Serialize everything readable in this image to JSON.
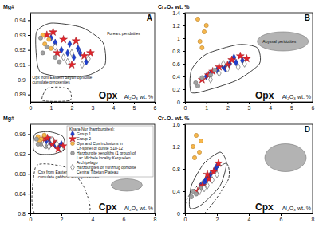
{
  "chart_data": [
    {
      "type": "scatter",
      "panel": "A",
      "label": "Opx",
      "xlabel": "Al₂O₃ wt. %",
      "ylabel": "Mg#",
      "xlim": [
        0,
        6
      ],
      "xticks": [
        0,
        1,
        2,
        3,
        4,
        5,
        6
      ],
      "ylim": [
        0.885,
        0.945
      ],
      "yticks": [
        0.89,
        0.9,
        0.91,
        0.92,
        0.93,
        0.94
      ],
      "fields": [
        {
          "type": "polygon",
          "line_style": "solid",
          "x": [
            0.3,
            0.5,
            1.5,
            2.8,
            3.6,
            3.5,
            2.5,
            1.0,
            0.3
          ],
          "y": [
            0.915,
            0.905,
            0.902,
            0.903,
            0.91,
            0.925,
            0.935,
            0.938,
            0.932
          ]
        },
        {
          "type": "polygon",
          "line_style": "dashed",
          "x": [
            0.6,
            1.9,
            1.9,
            1.4,
            0.8
          ],
          "y": [
            0.886,
            0.886,
            0.893,
            0.895,
            0.894
          ]
        }
      ],
      "annotations": [
        {
          "text": "Forearc peridotites",
          "x": 3.7,
          "y": 0.93
        },
        {
          "text": "Opx from Eastern Sayan ophiolite cumulate pyroxenites",
          "x": 0.1,
          "y": 0.9005
        }
      ],
      "series": [
        {
          "color": "#1f3fcf",
          "marker": "diamond",
          "x": [
            1.2,
            1.5,
            1.8,
            2.1,
            2.4,
            1.0,
            2.7,
            1.9,
            2.3
          ],
          "values": [
            0.925,
            0.92,
            0.918,
            0.915,
            0.918,
            0.928,
            0.912,
            0.924,
            0.921
          ]
        },
        {
          "color": "#e3242b",
          "marker": "star",
          "x": [
            0.8,
            1.1,
            1.6,
            2.0,
            2.6,
            2.9,
            1.3,
            2.2
          ],
          "values": [
            0.93,
            0.932,
            0.927,
            0.91,
            0.916,
            0.918,
            0.918,
            0.926
          ]
        },
        {
          "color": "#f7b64a",
          "marker": "circle",
          "x": [
            0.6,
            0.9,
            0.7,
            1.0
          ],
          "values": [
            0.93,
            0.927,
            0.924,
            0.921
          ]
        },
        {
          "color": "#a0a0a0",
          "marker": "circle",
          "x": [
            0.5,
            0.8,
            1.2,
            0.6,
            1.4
          ],
          "values": [
            0.928,
            0.922,
            0.915,
            0.918,
            0.912
          ]
        },
        {
          "color": "#ffffff",
          "marker": "diamond",
          "x": [
            1.6,
            2.0,
            2.5,
            1.2,
            1.8,
            2.8
          ],
          "values": [
            0.915,
            0.918,
            0.91,
            0.922,
            0.912,
            0.914
          ]
        }
      ]
    },
    {
      "type": "scatter",
      "panel": "B",
      "label": "Opx",
      "xlabel": "Al₂O₃ wt. %",
      "ylabel": "Cr₂O₃ wt. %",
      "xlim": [
        0,
        6
      ],
      "xticks": [
        0,
        1,
        2,
        3,
        4,
        5,
        6
      ],
      "ylim": [
        0,
        1.4
      ],
      "yticks": [
        0,
        0.2,
        0.4,
        0.6,
        0.8,
        1,
        1.2,
        1.4
      ],
      "fields": [
        {
          "type": "polygon",
          "line_style": "solid",
          "x": [
            0.3,
            1.2,
            2.5,
            3.5,
            3.4,
            2.5,
            1.0,
            0.3
          ],
          "y": [
            0.15,
            0.2,
            0.35,
            0.6,
            0.85,
            0.9,
            0.75,
            0.5
          ]
        },
        {
          "type": "ellipse",
          "color": "#b3b3b3",
          "cx": 4.6,
          "cy": 0.95,
          "rx": 1.2,
          "ry": 0.15
        }
      ],
      "annotations": [
        {
          "text": "Abyssal peridotites",
          "x": 3.65,
          "y": 0.93
        }
      ],
      "series": [
        {
          "color": "#1f3fcf",
          "marker": "diamond",
          "x": [
            1.2,
            1.5,
            1.8,
            2.1,
            2.4,
            1.0,
            2.7,
            1.9,
            2.3
          ],
          "values": [
            0.45,
            0.5,
            0.55,
            0.6,
            0.62,
            0.4,
            0.65,
            0.52,
            0.7
          ]
        },
        {
          "color": "#e3242b",
          "marker": "star",
          "x": [
            0.8,
            1.1,
            1.6,
            2.0,
            2.6,
            2.9,
            1.3,
            2.2
          ],
          "values": [
            0.35,
            0.42,
            0.55,
            0.58,
            0.72,
            0.68,
            0.48,
            0.66
          ]
        },
        {
          "color": "#f7b64a",
          "marker": "circle",
          "x": [
            0.6,
            0.9,
            0.7,
            1.0,
            0.8
          ],
          "values": [
            1.3,
            1.1,
            0.95,
            1.2,
            0.85
          ]
        },
        {
          "color": "#a0a0a0",
          "marker": "circle",
          "x": [
            0.5,
            0.8,
            1.2,
            0.6,
            1.4
          ],
          "values": [
            0.3,
            0.38,
            0.42,
            0.25,
            0.5
          ]
        },
        {
          "color": "#ffffff",
          "marker": "diamond",
          "x": [
            1.6,
            2.0,
            2.5,
            1.2,
            1.8,
            2.8
          ],
          "values": [
            0.45,
            0.52,
            0.55,
            0.35,
            0.6,
            0.6
          ]
        }
      ]
    },
    {
      "type": "scatter",
      "panel": "C",
      "label": "Cpx",
      "xlabel": "Al₂O₃ wt. %",
      "ylabel": "Mg#",
      "xlim": [
        0,
        8
      ],
      "xticks": [
        0,
        2,
        4,
        6,
        8
      ],
      "ylim": [
        0.8,
        0.98
      ],
      "yticks": [
        0.8,
        0.84,
        0.88,
        0.92,
        0.96
      ],
      "legend": "upper right",
      "legend_title": "Khara-Nur (harzburgites):",
      "fields": [
        {
          "type": "polygon",
          "line_style": "solid",
          "x": [
            0.2,
            0.6,
            1.5,
            2.2,
            2.1,
            1.2,
            0.3
          ],
          "y": [
            0.93,
            0.92,
            0.92,
            0.93,
            0.955,
            0.965,
            0.96
          ]
        },
        {
          "type": "polygon",
          "line_style": "dashed",
          "x": [
            0.3,
            3.7,
            3.5,
            2.5,
            1.0,
            0.3
          ],
          "y": [
            0.8,
            0.8,
            0.85,
            0.89,
            0.9,
            0.89
          ]
        },
        {
          "type": "ellipse",
          "color": "#b3b3b3",
          "cx": 6.2,
          "cy": 0.8575,
          "rx": 1.0,
          "ry": 0.0125
        }
      ],
      "annotations": [
        {
          "text": "Cpx from Eastern Sayan ophiolite cumulate gabbros and pyroxenites",
          "x": 0.5,
          "y": 0.88
        }
      ],
      "series": [
        {
          "name": "Group 1",
          "color": "#1f3fcf",
          "marker": "diamond",
          "x": [
            1.0,
            1.3,
            1.6,
            1.9,
            1.2,
            2.0
          ],
          "values": [
            0.945,
            0.94,
            0.938,
            0.935,
            0.95,
            0.94
          ]
        },
        {
          "name": "Group 2",
          "color": "#e3242b",
          "marker": "star",
          "x": [
            0.8,
            1.1,
            1.5,
            1.8,
            2.1,
            1.4
          ],
          "values": [
            0.95,
            0.952,
            0.945,
            0.93,
            0.936,
            0.94
          ]
        },
        {
          "name": "Opx and Cpx inclusions in Cr-spinel of dunite S18-12",
          "color": "#f7b64a",
          "marker": "circle",
          "x": [
            0.5,
            0.7,
            0.6,
            0.9
          ],
          "values": [
            0.955,
            0.95,
            0.945,
            0.958
          ]
        },
        {
          "name": "Harzburgite xenoliths (1 group) of Lac Michele locality Kerguelen Archipelago",
          "color": "#a0a0a0",
          "marker": "circle",
          "x": [
            0.4,
            0.7,
            1.0,
            0.5
          ],
          "values": [
            0.95,
            0.94,
            0.935,
            0.94
          ]
        },
        {
          "name": "Harzburgites of Yunzhug ophiolite Central Tibetan Plateau",
          "color": "#ffffff",
          "marker": "diamond",
          "x": [
            1.2,
            1.7,
            2.0,
            1.4,
            0.9
          ],
          "values": [
            0.935,
            0.94,
            0.93,
            0.948,
            0.94
          ]
        }
      ]
    },
    {
      "type": "scatter",
      "panel": "D",
      "label": "Cpx",
      "xlabel": "Al₂O₃ wt. %",
      "ylabel": "Cr₂O₃ wt. %",
      "xlim": [
        0,
        8
      ],
      "xticks": [
        0,
        2,
        4,
        6,
        8
      ],
      "ylim": [
        0,
        1.6
      ],
      "yticks": [
        0,
        0.4,
        0.8,
        1.2,
        1.6
      ],
      "fields": [
        {
          "type": "polygon",
          "line_style": "solid",
          "x": [
            0.3,
            1.0,
            2.2,
            2.6,
            2.2,
            1.2,
            0.4
          ],
          "y": [
            0.1,
            0.15,
            0.5,
            0.9,
            1.1,
            0.9,
            0.5
          ]
        },
        {
          "type": "polygon",
          "line_style": "dashed",
          "x": [
            0,
            1.2,
            2.7,
            2.6,
            1.5,
            0.2
          ],
          "y": [
            0,
            0,
            0.6,
            0.9,
            0.7,
            0.3
          ]
        },
        {
          "type": "ellipse",
          "color": "#b3b3b3",
          "cx": 6.3,
          "cy": 1.0,
          "rx": 1.3,
          "ry": 0.25
        }
      ],
      "series": [
        {
          "color": "#1f3fcf",
          "marker": "diamond",
          "x": [
            1.0,
            1.3,
            1.6,
            1.9,
            1.2,
            2.0,
            1.5
          ],
          "values": [
            0.5,
            0.6,
            0.7,
            0.8,
            0.55,
            0.85,
            0.65
          ]
        },
        {
          "color": "#e3242b",
          "marker": "star",
          "x": [
            0.8,
            1.1,
            1.5,
            1.8,
            2.1,
            1.4
          ],
          "values": [
            0.4,
            0.5,
            0.62,
            0.75,
            0.9,
            0.7
          ]
        },
        {
          "color": "#f7b64a",
          "marker": "circle",
          "x": [
            0.5,
            0.7,
            0.9,
            0.6,
            1.0
          ],
          "values": [
            1.2,
            1.4,
            1.1,
            1.0,
            1.3
          ]
        },
        {
          "color": "#a0a0a0",
          "marker": "circle",
          "x": [
            0.4,
            0.7,
            1.0,
            0.5
          ],
          "values": [
            0.3,
            0.35,
            0.45,
            0.4
          ]
        },
        {
          "color": "#ffffff",
          "marker": "diamond",
          "x": [
            1.2,
            1.7,
            2.0,
            1.4,
            0.9
          ],
          "values": [
            0.45,
            0.6,
            0.7,
            0.5,
            0.4
          ]
        }
      ]
    }
  ]
}
